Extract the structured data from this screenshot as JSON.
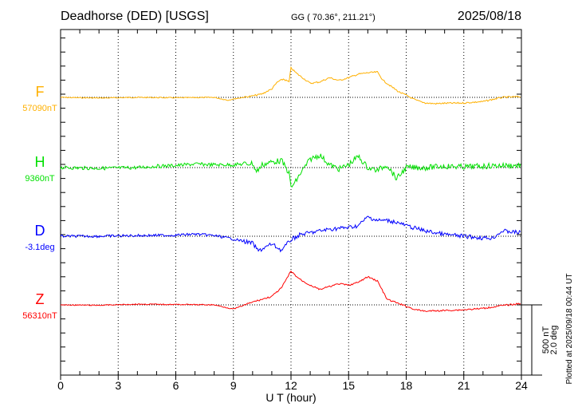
{
  "chart_data": {
    "type": "line",
    "title": "Deadhorse (DED)  [USGS]",
    "coords": "GG ( 70.36°, 211.21°)",
    "date": "2025/08/18",
    "xlabel": "U T (hour)",
    "xlim": [
      0,
      24
    ],
    "xticks": [
      "0",
      "3",
      "6",
      "9",
      "12",
      "15",
      "18",
      "21",
      "24"
    ],
    "scale_label_1": "500 nT",
    "scale_label_2": "2.0 deg",
    "plotted_note": "Plotted at 2025/09/18 00:44 UT",
    "series": [
      {
        "name": "F",
        "baseline_label": "57090nT",
        "unit": "nT",
        "color": "#ffb000",
        "x": [
          0,
          2,
          4,
          6,
          8,
          8.7,
          9,
          9.5,
          10,
          10.5,
          11,
          11.3,
          11.6,
          11.9,
          12,
          12.3,
          12.6,
          13,
          13.5,
          14,
          14.5,
          15,
          15.5,
          16,
          16.5,
          16.8,
          17.2,
          17.6,
          18,
          18.5,
          19,
          19.5,
          20,
          21,
          22,
          23,
          24
        ],
        "y": [
          0,
          -5,
          0,
          -3,
          0,
          -20,
          -12,
          0,
          10,
          25,
          60,
          110,
          130,
          110,
          210,
          170,
          140,
          100,
          110,
          140,
          120,
          140,
          165,
          175,
          180,
          120,
          80,
          40,
          15,
          -20,
          -40,
          -45,
          -42,
          -40,
          -30,
          0,
          5
        ]
      },
      {
        "name": "H",
        "baseline_label": "9360nT",
        "unit": "nT",
        "color": "#00e000",
        "x": [
          0,
          2,
          4,
          5,
          6,
          7,
          8,
          9,
          10,
          10.2,
          10.5,
          11,
          11.5,
          11.9,
          12,
          12.2,
          12.5,
          13,
          13.5,
          14,
          14.5,
          15,
          15.5,
          16,
          16.5,
          17,
          17.5,
          18,
          19,
          20,
          21,
          22,
          23,
          24
        ],
        "y": [
          0,
          -5,
          0,
          10,
          15,
          25,
          20,
          20,
          30,
          -30,
          20,
          40,
          50,
          -40,
          -140,
          -110,
          -40,
          60,
          90,
          20,
          -10,
          20,
          80,
          0,
          -20,
          20,
          -80,
          0,
          0,
          10,
          5,
          10,
          15,
          15
        ]
      },
      {
        "name": "D",
        "baseline_label": "-3.1deg",
        "unit": "deg",
        "color": "#0000ff",
        "x": [
          0,
          2,
          4,
          6,
          7,
          8,
          9,
          10,
          10.3,
          11,
          11.5,
          12,
          12.5,
          13,
          14,
          15,
          15.5,
          16,
          16.5,
          17,
          17.5,
          18,
          19,
          20,
          21,
          22,
          22.5,
          23,
          24
        ],
        "y": [
          0,
          0,
          0.02,
          0.03,
          0.06,
          0.02,
          -0.08,
          -0.2,
          -0.42,
          -0.22,
          -0.4,
          -0.1,
          0.05,
          0.1,
          0.2,
          0.25,
          0.3,
          0.55,
          0.45,
          0.45,
          0.4,
          0.3,
          0.15,
          0.05,
          0,
          -0.05,
          -0.05,
          0.15,
          0.1
        ]
      },
      {
        "name": "Z",
        "baseline_label": "56310nT",
        "unit": "nT",
        "color": "#ff0000",
        "x": [
          0,
          2,
          4,
          6,
          8,
          9,
          9.5,
          10,
          10.5,
          11,
          11.5,
          12,
          12.3,
          12.6,
          13,
          13.5,
          14,
          14.5,
          15,
          15.5,
          16,
          16.5,
          17,
          17.5,
          18,
          18.5,
          19,
          20,
          21,
          22,
          23,
          24
        ],
        "y": [
          0,
          -3,
          5,
          3,
          0,
          -30,
          -5,
          20,
          40,
          60,
          120,
          240,
          200,
          170,
          140,
          110,
          130,
          150,
          140,
          160,
          200,
          170,
          40,
          15,
          -10,
          -35,
          -45,
          -40,
          -35,
          -25,
          -5,
          10
        ]
      }
    ]
  }
}
